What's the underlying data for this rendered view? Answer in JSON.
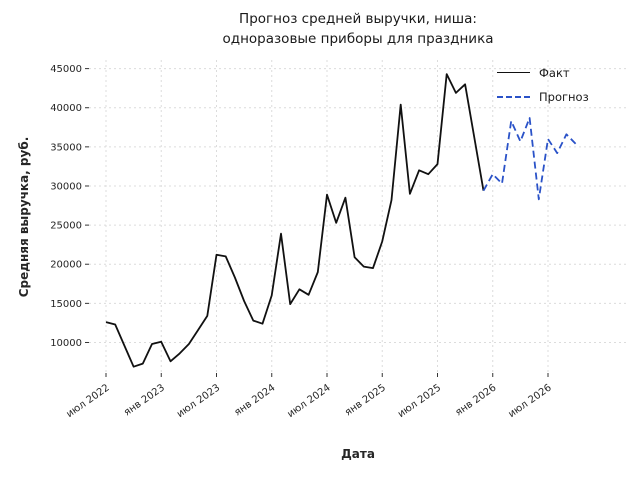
{
  "title": {
    "line1": "Прогноз средней выручки, ниша:",
    "line2": "одноразовые приборы для праздника"
  },
  "legend": {
    "fact": "Факт",
    "forecast": "Прогноз"
  },
  "colors": {
    "fact_line": "#111111",
    "forecast_line": "#2a52c8",
    "grid": "#dcdcdc",
    "tick": "#333333",
    "tick_label": "#262626"
  },
  "chart_data": {
    "type": "line",
    "title": "Прогноз средней выручки, ниша: одноразовые приборы для праздника",
    "xlabel": "Дата",
    "ylabel": "Средняя выручка, руб.",
    "legend_position": "upper right",
    "grid": "dotted",
    "ylim": [
      6100,
      46100
    ],
    "y_ticks": [
      10000,
      15000,
      20000,
      25000,
      30000,
      35000,
      40000,
      45000
    ],
    "x_ticks": [
      {
        "label": "июл 2022",
        "month_index": 0
      },
      {
        "label": "янв 2023",
        "month_index": 6
      },
      {
        "label": "июл 2023",
        "month_index": 12
      },
      {
        "label": "янв 2024",
        "month_index": 18
      },
      {
        "label": "июл 2024",
        "month_index": 24
      },
      {
        "label": "янв 2025",
        "month_index": 30
      },
      {
        "label": "июл 2025",
        "month_index": 36
      },
      {
        "label": "янв 2026",
        "month_index": 42
      },
      {
        "label": "июл 2026",
        "month_index": 48
      }
    ],
    "series": [
      {
        "name": "Факт",
        "style": "solid",
        "start_month": "2022-07",
        "start_index": 0,
        "values": [
          12600,
          12300,
          9600,
          6900,
          7300,
          9800,
          10100,
          7600,
          8600,
          9800,
          11600,
          13400,
          21200,
          21000,
          18300,
          15300,
          12800,
          12400,
          16000,
          23900,
          14900,
          16800,
          16100,
          19000,
          28900,
          25300,
          28500,
          20900,
          19700,
          19500,
          22900,
          28200,
          40400,
          29000,
          32000,
          31500,
          32800,
          44300,
          41900,
          43000,
          36200,
          29400
        ]
      },
      {
        "name": "Прогноз",
        "style": "dashed",
        "start_month": "2025-12",
        "start_index": 41,
        "values": [
          29400,
          31500,
          30300,
          38300,
          35700,
          38700,
          28300,
          36000,
          34200,
          36600,
          35400
        ]
      }
    ]
  }
}
